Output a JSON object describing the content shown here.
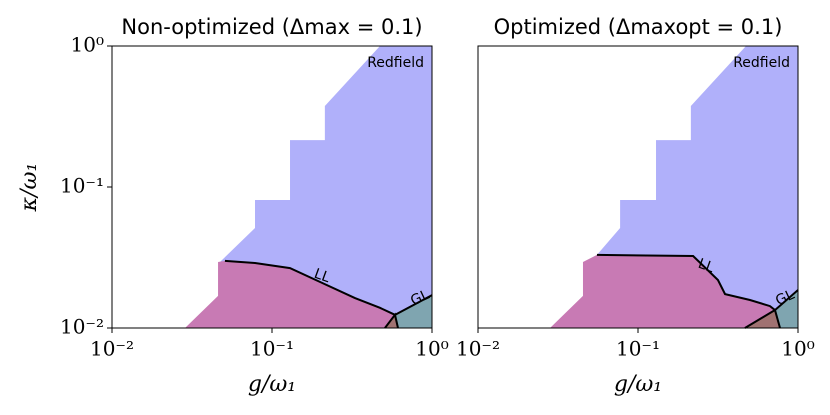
{
  "chart_data": [
    {
      "type": "region",
      "title": "Non-optimized (Δmax = 0.1)",
      "xlabel": "g/ω₁",
      "ylabel": "κ/ω₁",
      "log": true,
      "xlim": [
        0.01,
        1
      ],
      "ylim": [
        0.01,
        1
      ],
      "xticks": [
        {
          "value": 0.01,
          "label": "10⁻²"
        },
        {
          "value": 0.1,
          "label": "10⁻¹"
        },
        {
          "value": 1,
          "label": "10⁰"
        }
      ],
      "yticks": [
        {
          "value": 0.01,
          "label": "10⁻²"
        },
        {
          "value": 0.1,
          "label": "10⁻¹"
        },
        {
          "value": 1,
          "label": "10⁰"
        }
      ],
      "regions": [
        {
          "color": "#b0b0fa",
          "x": [
            0.0473,
            0.0783,
            0.0783,
            0.1296,
            0.1296,
            0.214,
            0.214,
            0.473,
            1,
            1,
            0.587,
            0.473,
            0.33,
            0.2,
            0.1296,
            0.0783,
            0.0508
          ],
          "y": [
            0.0294,
            0.0512,
            0.0809,
            0.0809,
            0.215,
            0.215,
            0.375,
            1,
            1,
            0.0171,
            0.0124,
            0.0139,
            0.0163,
            0.0212,
            0.0266,
            0.0289,
            0.0299
          ]
        },
        {
          "color": "#c87ab4",
          "x": [
            0.0286,
            0.046,
            0.046,
            0.0508,
            0.0783,
            0.1296,
            0.2,
            0.33,
            0.473,
            0.587,
            0.508
          ],
          "y": [
            0.01,
            0.0169,
            0.0294,
            0.0299,
            0.0289,
            0.0266,
            0.0212,
            0.0163,
            0.0139,
            0.0124,
            0.01
          ]
        },
        {
          "color": "#a07272",
          "x": [
            0.508,
            0.587,
            0.613
          ],
          "y": [
            0.01,
            0.0124,
            0.01
          ]
        },
        {
          "color": "#7fa5b0",
          "x": [
            0.587,
            1,
            1,
            0.613
          ],
          "y": [
            0.0124,
            0.0171,
            0.01,
            0.01
          ]
        }
      ],
      "lines": [
        {
          "x": [
            0.0508,
            0.0783,
            0.1296,
            0.2,
            0.33,
            0.473,
            0.587,
            1
          ],
          "y": [
            0.0299,
            0.0289,
            0.0266,
            0.0212,
            0.0163,
            0.0139,
            0.0124,
            0.0171
          ]
        },
        {
          "x": [
            0.508,
            0.587,
            0.613
          ],
          "y": [
            0.01,
            0.0124,
            0.01
          ]
        }
      ],
      "annotations": [
        "Redfield",
        "LL",
        "GL"
      ]
    },
    {
      "type": "region",
      "title": "Optimized (Δmaxopt = 0.1)",
      "xlabel": "g/ω₁",
      "log": true,
      "xlim": [
        0.01,
        1
      ],
      "ylim": [
        0.01,
        1
      ],
      "xticks": [
        {
          "value": 0.01,
          "label": "10⁻²"
        },
        {
          "value": 0.1,
          "label": "10⁻¹"
        },
        {
          "value": 1,
          "label": "10⁰"
        }
      ],
      "regions": [
        {
          "color": "#b0b0fa",
          "x": [
            0.0554,
            0.0773,
            0.0773,
            0.1296,
            0.1296,
            0.214,
            0.214,
            0.473,
            1,
            1,
            0.718,
            0.668,
            0.501,
            0.35,
            0.316,
            0.221
          ],
          "y": [
            0.033,
            0.0512,
            0.0809,
            0.0809,
            0.215,
            0.215,
            0.375,
            1,
            1,
            0.0186,
            0.0134,
            0.0143,
            0.0158,
            0.0174,
            0.0219,
            0.0324
          ]
        },
        {
          "color": "#c87ab4",
          "x": [
            0.0282,
            0.0453,
            0.0453,
            0.0554,
            0.221,
            0.316,
            0.35,
            0.501,
            0.668,
            0.718,
            0.466
          ],
          "y": [
            0.01,
            0.0169,
            0.0294,
            0.033,
            0.0324,
            0.0219,
            0.0174,
            0.0158,
            0.0143,
            0.0134,
            0.01
          ]
        },
        {
          "color": "#a07272",
          "x": [
            0.466,
            0.718,
            0.772
          ],
          "y": [
            0.01,
            0.0134,
            0.01
          ]
        },
        {
          "color": "#7fa5b0",
          "x": [
            0.718,
            1,
            1,
            0.772
          ],
          "y": [
            0.0134,
            0.0186,
            0.01,
            0.01
          ]
        }
      ],
      "lines": [
        {
          "x": [
            0.0554,
            0.221,
            0.316,
            0.35,
            0.501,
            0.668,
            0.718,
            1
          ],
          "y": [
            0.033,
            0.0324,
            0.0219,
            0.0174,
            0.0158,
            0.0143,
            0.0134,
            0.0186
          ]
        },
        {
          "x": [
            0.466,
            0.718,
            0.772
          ],
          "y": [
            0.01,
            0.0134,
            0.01
          ]
        }
      ],
      "annotations": [
        "Redfield",
        "LL",
        "GL"
      ]
    }
  ]
}
